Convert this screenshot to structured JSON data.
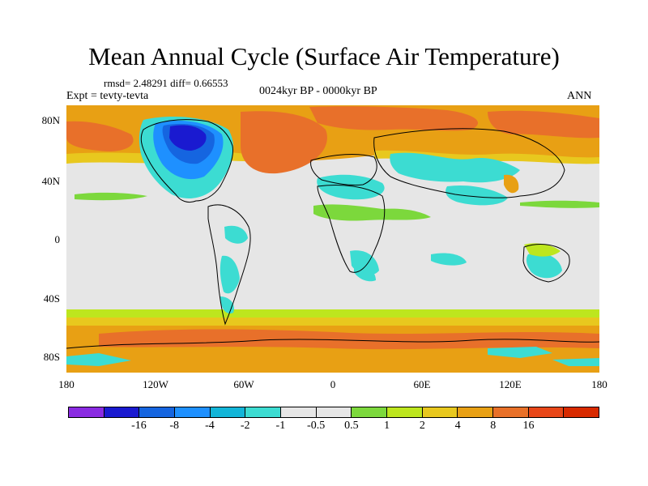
{
  "header": {
    "title": "Mean Annual Cycle (Surface Air Temperature)",
    "stats": "rmsd= 2.48291 diff= 0.66553",
    "experiment": "Expt = tevty-tevta",
    "period": "0024kyr BP - 0000kyr BP",
    "season": "ANN"
  },
  "axes": {
    "lat_labels": [
      "80N",
      "40N",
      "0",
      "40S",
      "80S"
    ],
    "lon_labels": [
      "180",
      "120W",
      "60W",
      "0",
      "60E",
      "120E",
      "180"
    ]
  },
  "colorbar": {
    "colors": [
      "#8a2be2",
      "#1a1ad0",
      "#1565e0",
      "#1e90ff",
      "#12b5d8",
      "#3cdcd2",
      "#e6e6e6",
      "#e6e6e6",
      "#7cd83c",
      "#bde61e",
      "#e8c81e",
      "#e8a014",
      "#e87028",
      "#e84618",
      "#d82a00"
    ],
    "labels": [
      "-16",
      "-8",
      "-4",
      "-2",
      "-1",
      "-0.5",
      "0.5",
      "1",
      "2",
      "4",
      "8",
      "16"
    ]
  },
  "map_colors": {
    "neutral": "#e6e6e6",
    "warm_strong": "#e8702a",
    "warm": "#e8a014",
    "warm_light": "#e8c81e",
    "mild": "#bde61e",
    "slight": "#7cd83c",
    "cool": "#3cdcd2",
    "cold": "#1e90ff",
    "colder": "#1565e0",
    "coldest": "#1a1ad0"
  }
}
